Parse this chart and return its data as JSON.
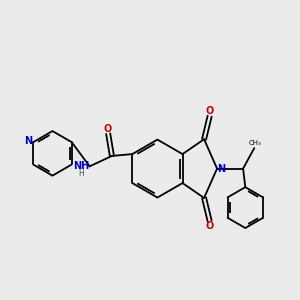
{
  "background_color": "#ebebeb",
  "bond_color": "#000000",
  "atom_colors": {
    "N": "#0000cc",
    "O": "#cc0000",
    "C": "#000000",
    "H": "#555555"
  },
  "figsize": [
    3.0,
    3.0
  ],
  "dpi": 100
}
